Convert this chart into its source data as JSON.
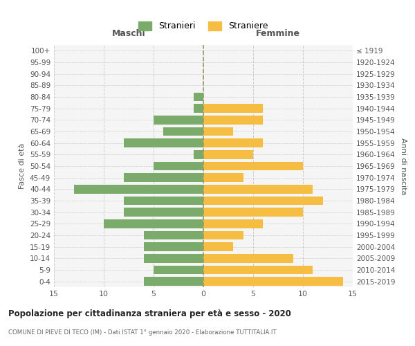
{
  "age_groups": [
    "0-4",
    "5-9",
    "10-14",
    "15-19",
    "20-24",
    "25-29",
    "30-34",
    "35-39",
    "40-44",
    "45-49",
    "50-54",
    "55-59",
    "60-64",
    "65-69",
    "70-74",
    "75-79",
    "80-84",
    "85-89",
    "90-94",
    "95-99",
    "100+"
  ],
  "birth_years": [
    "2015-2019",
    "2010-2014",
    "2005-2009",
    "2000-2004",
    "1995-1999",
    "1990-1994",
    "1985-1989",
    "1980-1984",
    "1975-1979",
    "1970-1974",
    "1965-1969",
    "1960-1964",
    "1955-1959",
    "1950-1954",
    "1945-1949",
    "1940-1944",
    "1935-1939",
    "1930-1934",
    "1925-1929",
    "1920-1924",
    "≤ 1919"
  ],
  "maschi": [
    6,
    5,
    6,
    6,
    6,
    10,
    8,
    8,
    13,
    8,
    5,
    1,
    8,
    4,
    5,
    1,
    1,
    0,
    0,
    0,
    0
  ],
  "femmine": [
    14,
    11,
    9,
    3,
    4,
    6,
    10,
    12,
    11,
    4,
    10,
    5,
    6,
    3,
    6,
    6,
    0,
    0,
    0,
    0,
    0
  ],
  "color_maschi": "#7aab6a",
  "color_femmine": "#f5be43",
  "background_color": "#f5f5f5",
  "grid_color": "#cccccc",
  "title": "Popolazione per cittadinanza straniera per età e sesso - 2020",
  "subtitle": "COMUNE DI PIEVE DI TECO (IM) - Dati ISTAT 1° gennaio 2020 - Elaborazione TUTTITALIA.IT",
  "xlabel_left": "Maschi",
  "xlabel_right": "Femmine",
  "ylabel_left": "Fasce di età",
  "ylabel_right": "Anni di nascita",
  "legend_maschi": "Stranieri",
  "legend_femmine": "Straniere",
  "xlim": 15,
  "center_line_color": "#aaaaaa"
}
